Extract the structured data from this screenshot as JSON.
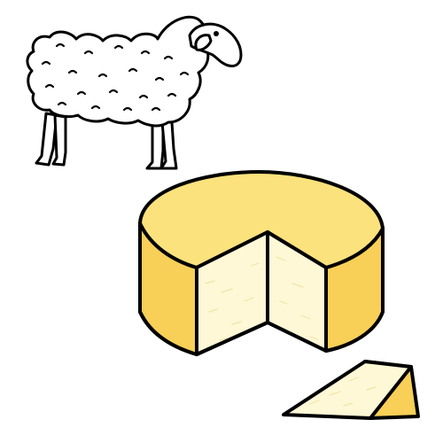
{
  "scene": {
    "illustrations": [
      "sheep",
      "cheese-wheel",
      "cheese-wedge"
    ]
  },
  "colors": {
    "background": "#ffffff",
    "outline": "#000000",
    "sheep_wool": "#ffffff",
    "cheese_top": "#fbe27d",
    "cheese_rind": "#f8cf57",
    "cheese_cut_face": "#fff8d6",
    "cheese_cut_texture": "#f1e3a6"
  }
}
